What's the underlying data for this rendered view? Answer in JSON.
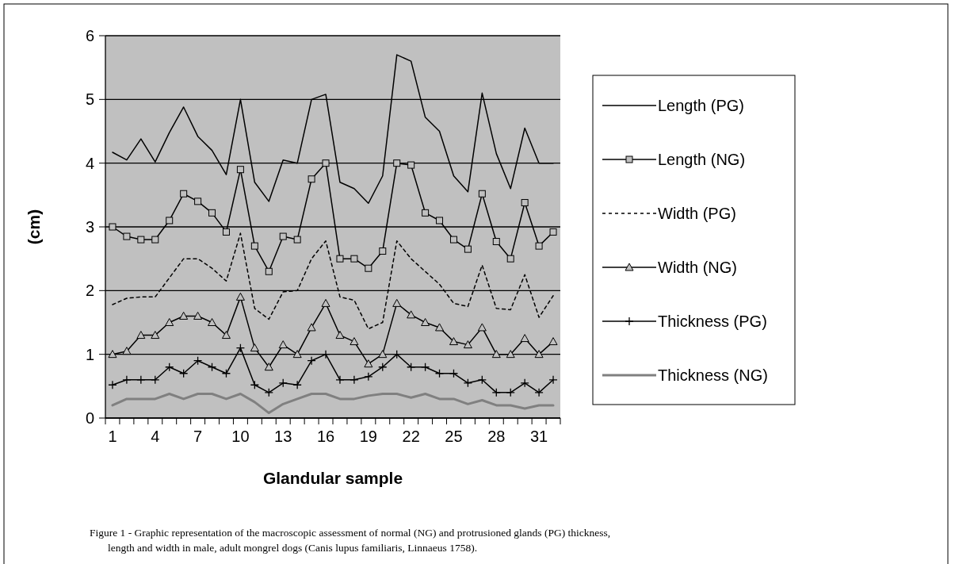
{
  "chart_data": {
    "type": "line",
    "xlabel": "Glandular sample",
    "ylabel": "(cm)",
    "categories": [
      "1",
      null,
      null,
      "4",
      null,
      null,
      "7",
      null,
      null,
      "10",
      null,
      null,
      "13",
      null,
      null,
      "16",
      null,
      null,
      "19",
      null,
      null,
      "22",
      null,
      null,
      "25",
      null,
      null,
      "28",
      null,
      null,
      "31",
      null
    ],
    "ylim": [
      0,
      6
    ],
    "yticks": [
      0,
      1,
      2,
      3,
      4,
      5,
      6
    ],
    "grid": "y",
    "legend": "right",
    "series": [
      {
        "name": "Length (PG)",
        "color": "#000000",
        "marker": "none",
        "line_style": "solid",
        "values": [
          4.17,
          4.05,
          4.38,
          4.02,
          4.48,
          4.88,
          4.42,
          4.2,
          3.82,
          5.0,
          3.7,
          3.4,
          4.05,
          4.0,
          5.0,
          5.08,
          3.7,
          3.6,
          3.37,
          3.8,
          5.7,
          5.6,
          4.72,
          4.5,
          3.8,
          3.55,
          5.1,
          4.15,
          3.6,
          4.55,
          4.0,
          4.0
        ]
      },
      {
        "name": "Length (NG)",
        "color": "#000000",
        "marker": "square",
        "line_style": "solid",
        "values": [
          3.0,
          2.85,
          2.8,
          2.8,
          3.1,
          3.52,
          3.4,
          3.22,
          2.92,
          3.9,
          2.7,
          2.3,
          2.85,
          2.8,
          3.75,
          4.0,
          2.5,
          2.5,
          2.35,
          2.62,
          4.0,
          3.97,
          3.22,
          3.1,
          2.8,
          2.65,
          3.52,
          2.77,
          2.5,
          3.38,
          2.7,
          2.92
        ]
      },
      {
        "name": "Width (PG)",
        "color": "#000000",
        "marker": "none",
        "line_style": "dashed",
        "values": [
          1.78,
          1.88,
          1.9,
          1.9,
          2.2,
          2.5,
          2.5,
          2.35,
          2.15,
          2.9,
          1.72,
          1.55,
          1.98,
          2.0,
          2.5,
          2.78,
          1.9,
          1.85,
          1.4,
          1.5,
          2.78,
          2.5,
          2.3,
          2.1,
          1.8,
          1.75,
          2.4,
          1.72,
          1.7,
          2.25,
          1.58,
          1.92
        ]
      },
      {
        "name": "Width (NG)",
        "color": "#000000",
        "marker": "triangle",
        "line_style": "solid",
        "values": [
          1.0,
          1.05,
          1.3,
          1.3,
          1.5,
          1.6,
          1.6,
          1.5,
          1.3,
          1.9,
          1.1,
          0.8,
          1.15,
          1.0,
          1.42,
          1.8,
          1.3,
          1.2,
          0.85,
          1.0,
          1.8,
          1.62,
          1.5,
          1.42,
          1.2,
          1.15,
          1.42,
          1.0,
          1.0,
          1.25,
          1.0,
          1.2
        ]
      },
      {
        "name": "Thickness (PG)",
        "color": "#000000",
        "marker": "cross",
        "line_style": "solid",
        "values": [
          0.52,
          0.6,
          0.6,
          0.6,
          0.8,
          0.7,
          0.9,
          0.8,
          0.7,
          1.1,
          0.52,
          0.4,
          0.55,
          0.52,
          0.9,
          1.0,
          0.6,
          0.6,
          0.65,
          0.8,
          1.0,
          0.8,
          0.8,
          0.7,
          0.7,
          0.55,
          0.6,
          0.4,
          0.4,
          0.55,
          0.4,
          0.6
        ]
      },
      {
        "name": "Thickness (NG)",
        "color": "#808080",
        "marker": "none",
        "line_style": "solid",
        "values": [
          0.2,
          0.3,
          0.3,
          0.3,
          0.38,
          0.3,
          0.38,
          0.38,
          0.3,
          0.38,
          0.25,
          0.08,
          0.22,
          0.3,
          0.38,
          0.38,
          0.3,
          0.3,
          0.35,
          0.38,
          0.38,
          0.32,
          0.38,
          0.3,
          0.3,
          0.22,
          0.28,
          0.2,
          0.2,
          0.15,
          0.2,
          0.2
        ]
      }
    ],
    "annotations": [
      "Figure 1 - Graphic representation of the macroscopic assessment of normal (NG) and protrusioned glands (PG) thickness, length and width in male, adult mongrel dogs (Canis lupus familiaris, Linnaeus 1758)."
    ]
  }
}
